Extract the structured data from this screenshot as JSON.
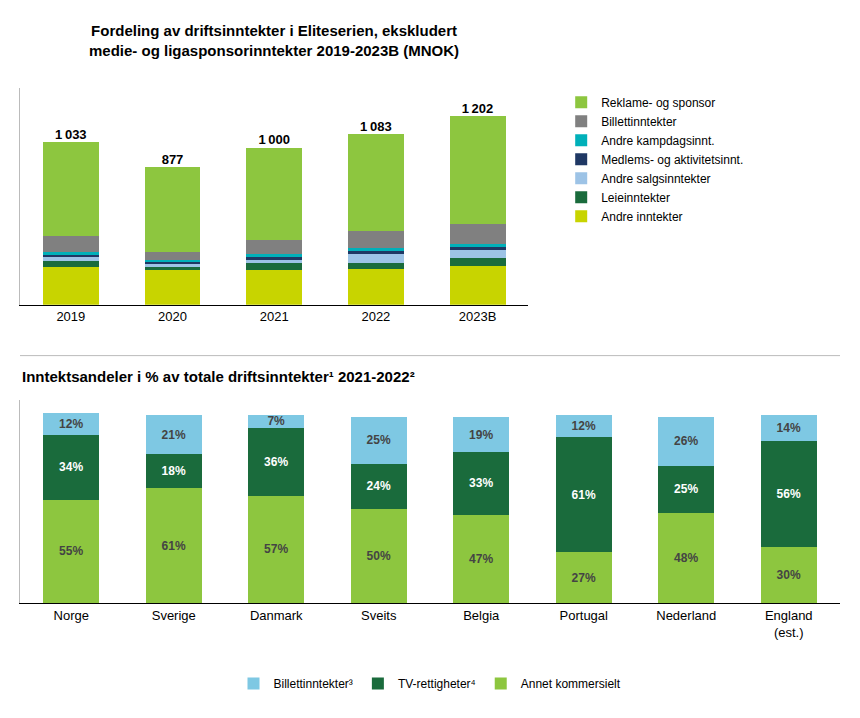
{
  "chart_data": [
    {
      "type": "bar",
      "title": "Fordeling av driftsinntekter i Eliteserien, ekskludert\nmedie- og ligasponsorinntekter 2019-2023B (MNOK)",
      "categories": [
        "2019",
        "2020",
        "2021",
        "2022",
        "2023B"
      ],
      "series": [
        {
          "name": "Andre inntekter",
          "color": "#c8d400",
          "values": [
            240,
            224,
            220,
            230,
            245
          ]
        },
        {
          "name": "Leieinntekter",
          "color": "#1a6b3c",
          "values": [
            38,
            18,
            45,
            38,
            52
          ]
        },
        {
          "name": "Andre salgsinntekter",
          "color": "#9dc3e6",
          "values": [
            25,
            18,
            22,
            55,
            50
          ]
        },
        {
          "name": "Medlems- og aktivitetsinnt.",
          "color": "#1f3864",
          "values": [
            15,
            15,
            18,
            18,
            20
          ]
        },
        {
          "name": "Andre kampdagsinnt.",
          "color": "#00b0b9",
          "values": [
            18,
            12,
            18,
            20,
            22
          ]
        },
        {
          "name": "Billettinntekter",
          "color": "#808080",
          "values": [
            100,
            50,
            87,
            110,
            125
          ]
        },
        {
          "name": "Reklame- og sponsor",
          "color": "#8dc63f",
          "values": [
            597,
            540,
            590,
            612,
            688
          ]
        }
      ],
      "totals": [
        1033,
        877,
        1000,
        1083,
        1202
      ],
      "total_labels": [
        "1 033",
        "877",
        "1 000",
        "1 083",
        "1 202"
      ],
      "stacked": true,
      "ylim": [
        0,
        1380
      ],
      "tick_labels": "x",
      "grid": false,
      "legend": "right"
    },
    {
      "type": "bar",
      "title": "Inntektsandeler i % av totale driftsinntekter¹ 2021-2022²",
      "categories": [
        "Norge",
        "Sverige",
        "Danmark",
        "Sveits",
        "Belgia",
        "Portugal",
        "Nederland",
        "England\n(est.)"
      ],
      "series": [
        {
          "name": "Annet kommersielt",
          "color": "#8dc63f",
          "values": [
            55,
            61,
            57,
            50,
            47,
            27,
            48,
            30
          ],
          "value_labels": [
            "55%",
            "61%",
            "57%",
            "50%",
            "47%",
            "27%",
            "48%",
            "30%"
          ]
        },
        {
          "name": "TV-rettigheter⁴",
          "color": "#1a6b3c",
          "values": [
            34,
            18,
            36,
            24,
            33,
            61,
            25,
            56
          ],
          "value_labels": [
            "34%",
            "18%",
            "36%",
            "24%",
            "33%",
            "61%",
            "25%",
            "56%"
          ]
        },
        {
          "name": "Billettinntekter³",
          "color": "#7ec8e3",
          "values": [
            12,
            21,
            7,
            25,
            19,
            12,
            26,
            14
          ],
          "value_labels": [
            "12%",
            "21%",
            "7%",
            "25%",
            "19%",
            "12%",
            "26%",
            "14%"
          ]
        }
      ],
      "stacked": true,
      "data_labels": true,
      "ylim": [
        0,
        108
      ],
      "tick_labels": "x",
      "grid": false,
      "legend": "bottom"
    }
  ]
}
